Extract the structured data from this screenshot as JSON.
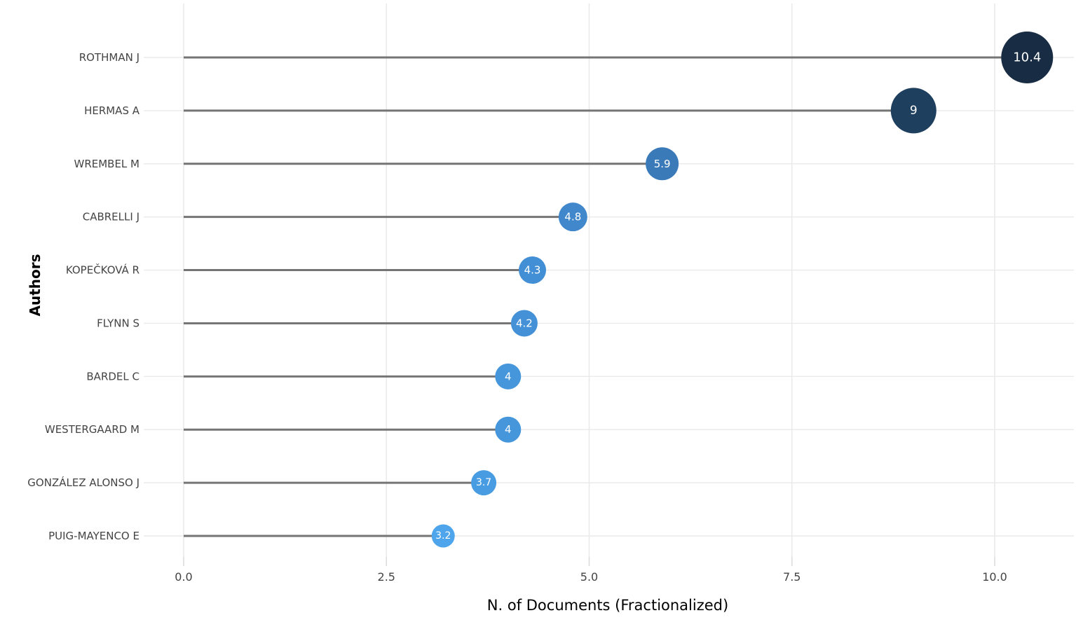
{
  "chart_data": {
    "type": "scatter",
    "variant": "lollipop-horizontal",
    "title": "",
    "xlabel": "N. of Documents (Fractionalized)",
    "ylabel": "Authors",
    "categories": [
      "ROTHMAN J",
      "HERMAS A",
      "WREMBEL M",
      "CABRELLI J",
      "KOPEČKOVÁ R",
      "FLYNN S",
      "BARDEL C",
      "WESTERGAARD M",
      "GONZÁLEZ ALONSO J",
      "PUIG-MAYENCO E"
    ],
    "values": [
      10.4,
      9,
      5.9,
      4.8,
      4.3,
      4.2,
      4,
      4,
      3.7,
      3.2
    ],
    "value_labels": [
      "10.4",
      "9",
      "5.9",
      "4.8",
      "4.3",
      "4.2",
      "4",
      "4",
      "3.7",
      "3.2"
    ],
    "x_ticks": {
      "values": [
        0,
        2.5,
        5,
        7.5,
        10
      ],
      "labels": [
        "0.0",
        "2.5",
        "5.0",
        "7.5",
        "10.0"
      ]
    },
    "xlim": [
      -0.5,
      11.0
    ],
    "grid": true,
    "legend": false,
    "point_colors": [
      "#182c44",
      "#1f3f5f",
      "#3a7ab9",
      "#4187cb",
      "#438fd5",
      "#4491d7",
      "#4696dc",
      "#4696dc",
      "#489ce2",
      "#4ea5ec"
    ],
    "point_radius_px": [
      37,
      32.5,
      23.5,
      20.5,
      19.5,
      19,
      18.5,
      18.5,
      18,
      16.5
    ],
    "stem_color": "#757575",
    "grid_color": "#eaeaea",
    "tick_mark_color": "#dcdcdc",
    "label_color": "#444444",
    "value_label_color": "#ffffff",
    "background_color": "#ffffff"
  }
}
